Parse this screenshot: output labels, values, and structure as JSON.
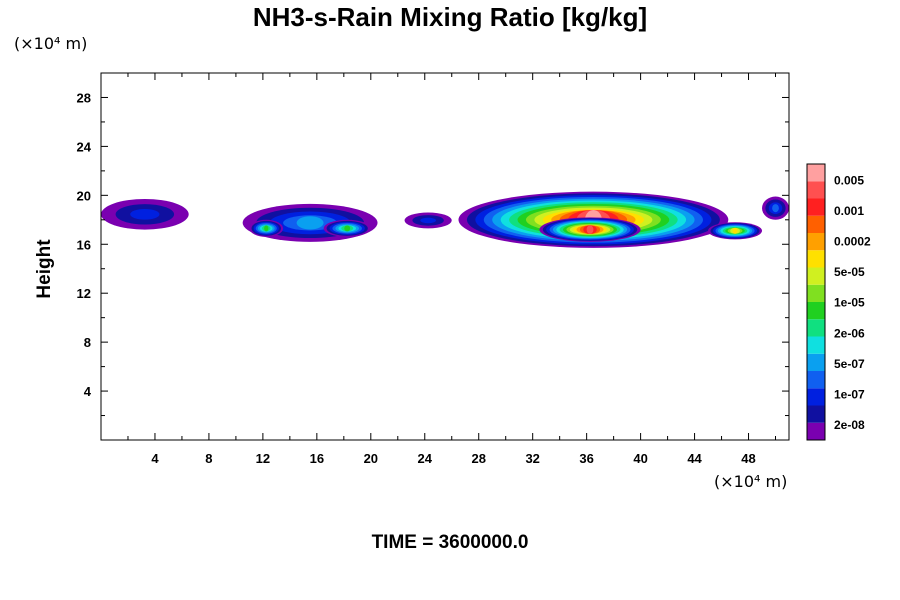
{
  "chart_data": {
    "type": "heatmap",
    "title": "NH3-s-Rain Mixing Ratio [kg/kg]",
    "ylabel": "Height",
    "x_unit": "(×10⁴ m)",
    "y_unit": "(×10⁴ m)",
    "xlim": [
      0,
      51
    ],
    "ylim": [
      0,
      30
    ],
    "x_ticks": [
      "4",
      "8",
      "12",
      "16",
      "20",
      "24",
      "28",
      "32",
      "36",
      "40",
      "44",
      "48"
    ],
    "x_tick_values": [
      4,
      8,
      12,
      16,
      20,
      24,
      28,
      32,
      36,
      40,
      44,
      48
    ],
    "y_ticks": [
      "4",
      "8",
      "12",
      "16",
      "20",
      "24",
      "28"
    ],
    "y_tick_values": [
      4,
      8,
      12,
      16,
      20,
      24,
      28
    ],
    "colorbar": {
      "labels": [
        "0.005",
        "0.001",
        "0.0002",
        "5e-05",
        "1e-05",
        "2e-06",
        "5e-07",
        "1e-07",
        "2e-08"
      ],
      "colors": [
        "#7a00b0",
        "#1010a0",
        "#0020e0",
        "#1060f0",
        "#0aa0f0",
        "#10e0e0",
        "#10e080",
        "#20d020",
        "#80e020",
        "#d0f020",
        "#ffe000",
        "#ffa000",
        "#ff6000",
        "#ff2020",
        "#ff5050",
        "#ffa0a0"
      ]
    },
    "regions": [
      {
        "x": [
          0,
          6.5
        ],
        "y": [
          17.2,
          19.7
        ],
        "level": 2
      },
      {
        "x": [
          10.5,
          20.5
        ],
        "y": [
          16.2,
          19.3
        ],
        "level": 4
      },
      {
        "x": [
          11,
          13.5
        ],
        "y": [
          16.6,
          18
        ],
        "level": 7
      },
      {
        "x": [
          16.5,
          20
        ],
        "y": [
          16.6,
          18
        ],
        "level": 7
      },
      {
        "x": [
          22.5,
          26
        ],
        "y": [
          17.3,
          18.6
        ],
        "level": 2
      },
      {
        "x": [
          26.5,
          46.5
        ],
        "y": [
          15.7,
          20.3
        ],
        "level": 15
      },
      {
        "x": [
          32.5,
          40
        ],
        "y": [
          16.2,
          18.2
        ],
        "level": 14
      },
      {
        "x": [
          45,
          49
        ],
        "y": [
          16.4,
          17.8
        ],
        "level": 10
      },
      {
        "x": [
          49,
          51
        ],
        "y": [
          18,
          19.9
        ],
        "level": 3
      }
    ]
  },
  "footer": {
    "time": "TIME = 3600000.0"
  }
}
